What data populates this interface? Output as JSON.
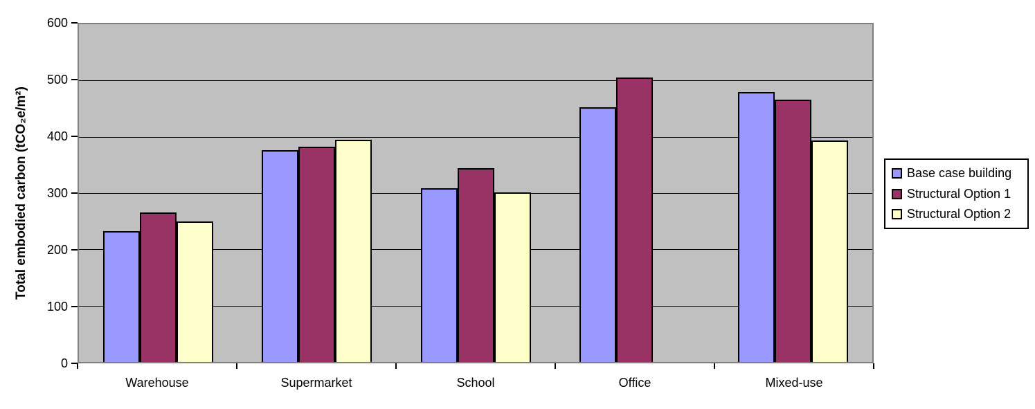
{
  "chart_data": {
    "type": "bar",
    "title": "",
    "xlabel": "",
    "ylabel": "Total embodied carbon (tCO₂e/m²)",
    "categories": [
      "Warehouse",
      "Supermarket",
      "School",
      "Office",
      "Mixed-use"
    ],
    "series": [
      {
        "name": "Base case building",
        "color": "#9999ff",
        "values": [
          233,
          376,
          309,
          452,
          479
        ]
      },
      {
        "name": "Structural Option 1",
        "color": "#993366",
        "values": [
          266,
          383,
          344,
          505,
          466
        ]
      },
      {
        "name": "Structural Option 2",
        "color": "#ffffcc",
        "values": [
          250,
          395,
          301,
          0,
          394
        ]
      }
    ],
    "ylim": [
      0,
      600
    ],
    "ytick_interval": 100,
    "ytick_labels": [
      "0",
      "100",
      "200",
      "300",
      "400",
      "500",
      "600"
    ],
    "grid": "horizontal",
    "legend_position": "right"
  },
  "colors": {
    "plot_background": "#c0c0c0",
    "plot_border": "#808080",
    "gridline": "#000000",
    "bar_border": "#000000",
    "page_background": "#ffffff",
    "legend_border": "#000000",
    "text": "#000000"
  }
}
